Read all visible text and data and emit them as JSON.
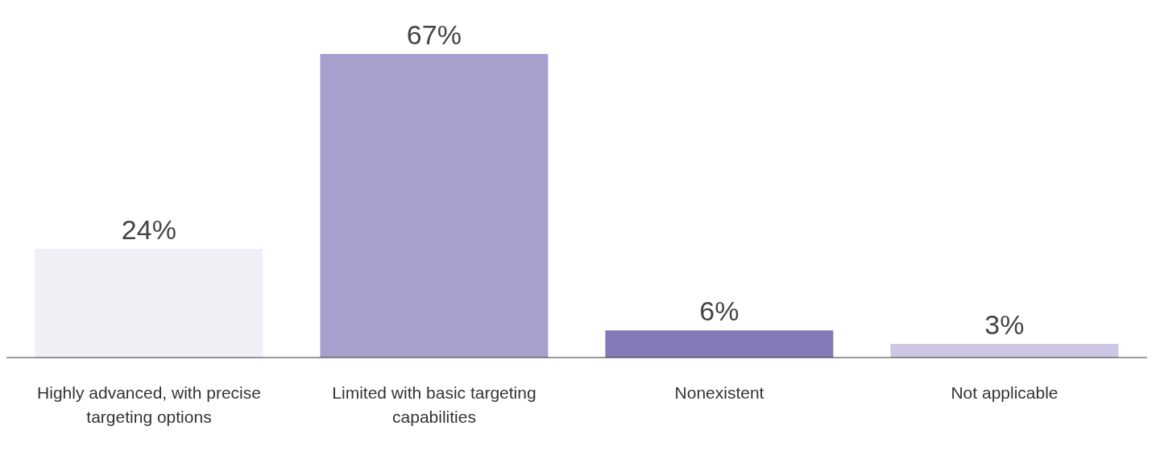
{
  "chart_data": {
    "type": "bar",
    "categories": [
      "Highly advanced, with precise targeting options",
      "Limited with basic targeting capabilities",
      "Nonexistent",
      "Not applicable"
    ],
    "values": [
      24,
      67,
      6,
      3
    ],
    "colors": [
      "#f0eff6",
      "#a89fcc",
      "#8479b6",
      "#cdc7e3"
    ],
    "value_labels": [
      "24%",
      "67%",
      "6%",
      "3%"
    ],
    "grid": false
  }
}
